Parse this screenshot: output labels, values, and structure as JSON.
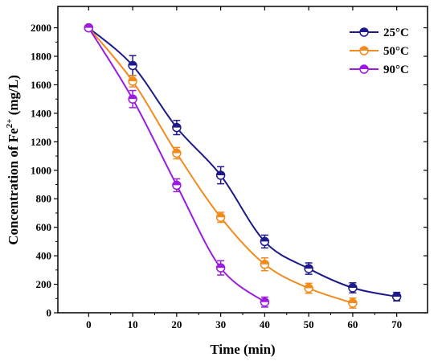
{
  "chart_data": {
    "type": "line",
    "title": "",
    "xlabel": "Time (min)",
    "ylabel_main": "Concentration of Fe",
    "ylabel_sup": "2+",
    "ylabel_tail": " (mg/L)",
    "xlim": [
      -7,
      77
    ],
    "ylim": [
      0,
      2150
    ],
    "x_ticks": [
      0,
      10,
      20,
      30,
      40,
      50,
      60,
      70
    ],
    "y_ticks": [
      0,
      200,
      400,
      600,
      800,
      1000,
      1200,
      1400,
      1600,
      1800,
      2000
    ],
    "legend_position": "top-right",
    "series": [
      {
        "name": "25°C",
        "color": "#1f1a8c",
        "x": [
          0,
          10,
          20,
          30,
          40,
          50,
          60,
          70
        ],
        "y": [
          2000,
          1735,
          1300,
          965,
          500,
          310,
          175,
          113
        ],
        "err": [
          0,
          70,
          50,
          60,
          45,
          40,
          35,
          30
        ]
      },
      {
        "name": "50°C",
        "color": "#f28a1c",
        "x": [
          0,
          10,
          20,
          30,
          40,
          50,
          60
        ],
        "y": [
          2000,
          1625,
          1120,
          670,
          340,
          172,
          68
        ],
        "err": [
          0,
          40,
          40,
          35,
          45,
          35,
          35
        ]
      },
      {
        "name": "90°C",
        "color": "#9b1ce0",
        "x": [
          0,
          10,
          20,
          30,
          40
        ],
        "y": [
          2000,
          1500,
          895,
          315,
          75
        ],
        "err": [
          0,
          60,
          45,
          50,
          35
        ]
      }
    ]
  }
}
